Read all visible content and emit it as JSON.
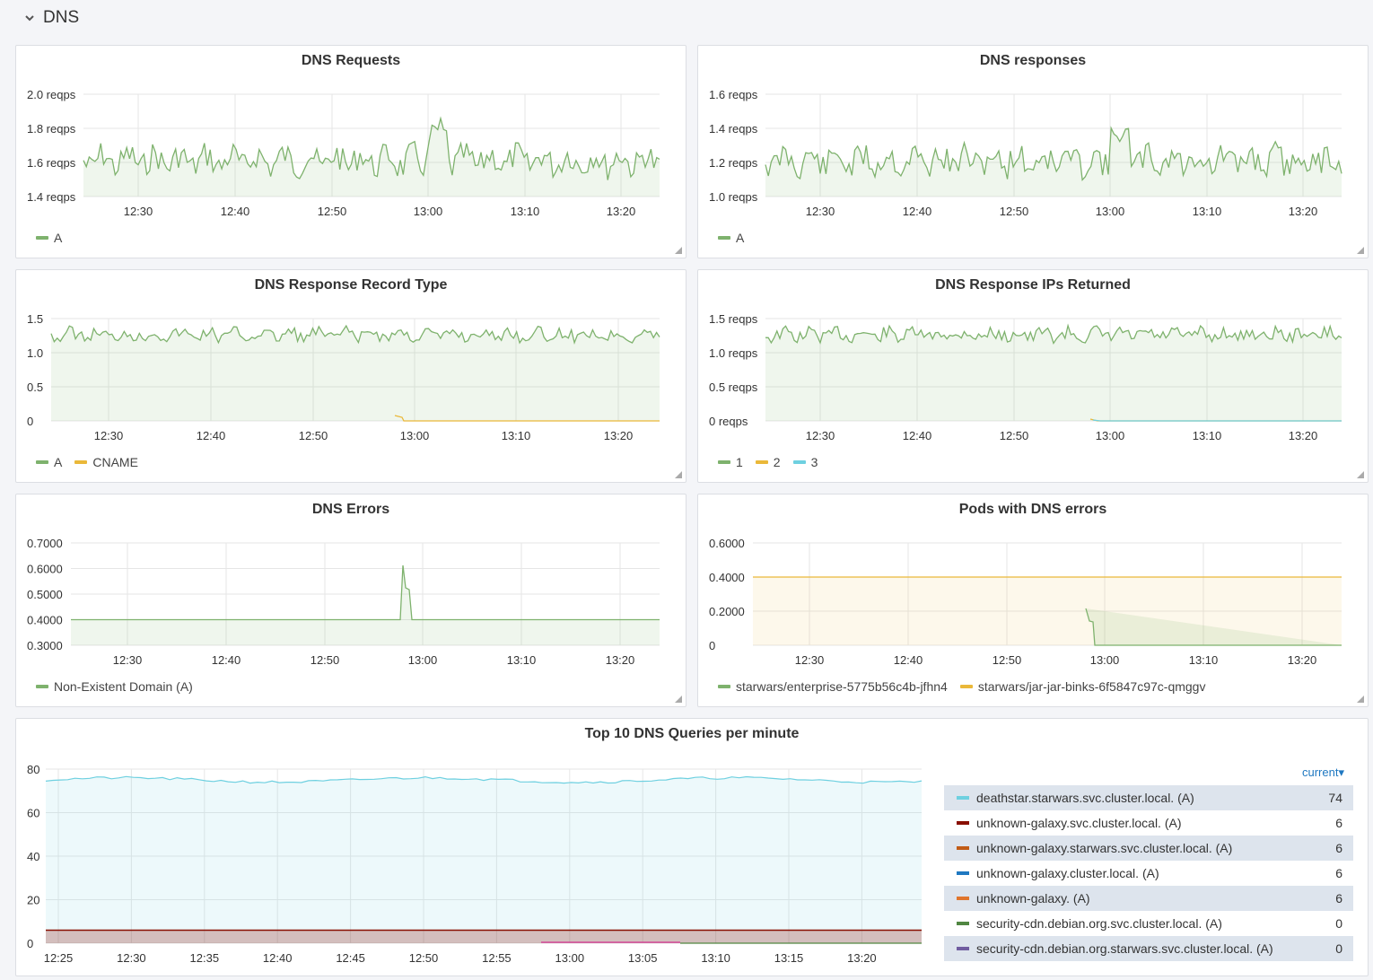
{
  "row": {
    "title": "DNS"
  },
  "colors": {
    "green": "#7eb26d",
    "yellow": "#eab839",
    "cyan": "#6ed0e0",
    "darkred": "#890f02",
    "ochre": "#c15c17",
    "teal": "#0a437c",
    "orange": "#e0752d",
    "olive": "#508642",
    "purple": "#705da0"
  },
  "panels": {
    "requests": {
      "title": "DNS Requests",
      "y_ticks": [
        "2.0 reqps",
        "1.8 reqps",
        "1.6 reqps",
        "1.4 reqps"
      ],
      "x_ticks": [
        "12:30",
        "12:40",
        "12:50",
        "13:00",
        "13:10",
        "13:20"
      ],
      "legend": [
        {
          "name": "A",
          "color": "#7eb26d"
        }
      ]
    },
    "responses": {
      "title": "DNS responses",
      "y_ticks": [
        "1.6 reqps",
        "1.4 reqps",
        "1.2 reqps",
        "1.0 reqps"
      ],
      "x_ticks": [
        "12:30",
        "12:40",
        "12:50",
        "13:00",
        "13:10",
        "13:20"
      ],
      "legend": [
        {
          "name": "A",
          "color": "#7eb26d"
        }
      ]
    },
    "record_type": {
      "title": "DNS Response Record Type",
      "y_ticks": [
        "1.5",
        "1.0",
        "0.5",
        "0"
      ],
      "x_ticks": [
        "12:30",
        "12:40",
        "12:50",
        "13:00",
        "13:10",
        "13:20"
      ],
      "legend": [
        {
          "name": "A",
          "color": "#7eb26d"
        },
        {
          "name": "CNAME",
          "color": "#eab839"
        }
      ]
    },
    "ips_returned": {
      "title": "DNS Response IPs Returned",
      "y_ticks": [
        "1.5 reqps",
        "1.0 reqps",
        "0.5 reqps",
        "0 reqps"
      ],
      "x_ticks": [
        "12:30",
        "12:40",
        "12:50",
        "13:00",
        "13:10",
        "13:20"
      ],
      "legend": [
        {
          "name": "1",
          "color": "#7eb26d"
        },
        {
          "name": "2",
          "color": "#eab839"
        },
        {
          "name": "3",
          "color": "#6ed0e0"
        }
      ]
    },
    "errors": {
      "title": "DNS Errors",
      "y_ticks": [
        "0.7000",
        "0.6000",
        "0.5000",
        "0.4000",
        "0.3000"
      ],
      "x_ticks": [
        "12:30",
        "12:40",
        "12:50",
        "13:00",
        "13:10",
        "13:20"
      ],
      "legend": [
        {
          "name": "Non-Existent Domain (A)",
          "color": "#7eb26d"
        }
      ]
    },
    "pods_errors": {
      "title": "Pods with DNS errors",
      "y_ticks": [
        "0.6000",
        "0.4000",
        "0.2000",
        "0"
      ],
      "x_ticks": [
        "12:30",
        "12:40",
        "12:50",
        "13:00",
        "13:10",
        "13:20"
      ],
      "legend": [
        {
          "name": "starwars/enterprise-5775b56c4b-jfhn4",
          "color": "#7eb26d"
        },
        {
          "name": "starwars/jar-jar-binks-6f5847c97c-qmggv",
          "color": "#eab839"
        }
      ]
    },
    "top10": {
      "title": "Top 10 DNS Queries per minute",
      "y_ticks": [
        "80",
        "60",
        "40",
        "20",
        "0"
      ],
      "x_ticks": [
        "12:25",
        "12:30",
        "12:35",
        "12:40",
        "12:45",
        "12:50",
        "12:55",
        "13:00",
        "13:05",
        "13:10",
        "13:15",
        "13:20"
      ],
      "table_header": "current",
      "rows": [
        {
          "name": "deathstar.starwars.svc.cluster.local. (A)",
          "value": "74",
          "color": "#6ed0e0"
        },
        {
          "name": "unknown-galaxy.svc.cluster.local. (A)",
          "value": "6",
          "color": "#890f02"
        },
        {
          "name": "unknown-galaxy.starwars.svc.cluster.local. (A)",
          "value": "6",
          "color": "#c15c17"
        },
        {
          "name": "unknown-galaxy.cluster.local. (A)",
          "value": "6",
          "color": "#1f78c1"
        },
        {
          "name": "unknown-galaxy. (A)",
          "value": "6",
          "color": "#e0752d"
        },
        {
          "name": "security-cdn.debian.org.svc.cluster.local. (A)",
          "value": "0",
          "color": "#508642"
        },
        {
          "name": "security-cdn.debian.org.starwars.svc.cluster.local. (A)",
          "value": "0",
          "color": "#705da0"
        }
      ]
    }
  }
}
